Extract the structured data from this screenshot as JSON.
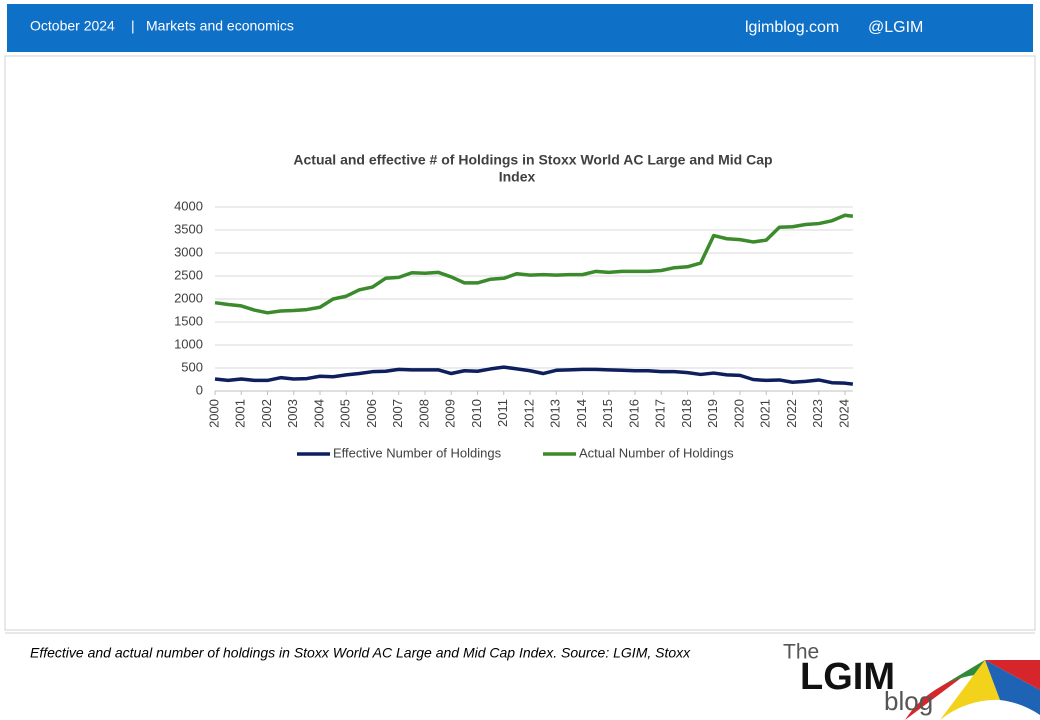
{
  "header": {
    "date": "October 2024",
    "separator": "|",
    "section": "Markets and economics",
    "site": "lgimblog.com",
    "handle": "@LGIM"
  },
  "chart_data": {
    "type": "line",
    "title": "Actual and effective # of Holdings in Stoxx World AC Large and Mid Cap",
    "title_line2": "Index",
    "x": [
      2000,
      2000.5,
      2001,
      2001.5,
      2002,
      2002.5,
      2003,
      2003.5,
      2004,
      2004.5,
      2005,
      2005.5,
      2006,
      2006.5,
      2007,
      2007.5,
      2008,
      2008.5,
      2009,
      2009.5,
      2010,
      2010.5,
      2011,
      2011.5,
      2012,
      2012.5,
      2013,
      2013.5,
      2014,
      2014.5,
      2015,
      2015.5,
      2016,
      2016.5,
      2017,
      2017.5,
      2018,
      2018.5,
      2019,
      2019.5,
      2020,
      2020.5,
      2021,
      2021.5,
      2022,
      2022.5,
      2023,
      2023.5,
      2024,
      2024.3
    ],
    "series": [
      {
        "name": "Effective Number of Holdings",
        "color": "#0e1f5e",
        "values": [
          260,
          230,
          260,
          230,
          230,
          290,
          260,
          270,
          320,
          310,
          350,
          380,
          420,
          430,
          470,
          460,
          460,
          460,
          380,
          440,
          430,
          480,
          520,
          480,
          440,
          380,
          450,
          460,
          470,
          470,
          460,
          450,
          440,
          440,
          420,
          420,
          400,
          360,
          390,
          350,
          340,
          250,
          230,
          240,
          190,
          210,
          240,
          180,
          170,
          150
        ]
      },
      {
        "name": "Actual Number of Holdings",
        "color": "#3b8a2c",
        "values": [
          1920,
          1880,
          1850,
          1760,
          1700,
          1740,
          1750,
          1770,
          1820,
          2000,
          2060,
          2200,
          2260,
          2450,
          2470,
          2570,
          2560,
          2580,
          2480,
          2350,
          2350,
          2430,
          2450,
          2550,
          2520,
          2530,
          2520,
          2530,
          2530,
          2600,
          2580,
          2600,
          2600,
          2600,
          2620,
          2680,
          2700,
          2780,
          3380,
          3310,
          3290,
          3240,
          3280,
          3560,
          3570,
          3620,
          3640,
          3700,
          3820,
          3800
        ]
      }
    ],
    "xlim": [
      2000,
      2024.3
    ],
    "xticks": [
      2000,
      2001,
      2002,
      2003,
      2004,
      2005,
      2006,
      2007,
      2008,
      2009,
      2010,
      2011,
      2012,
      2013,
      2014,
      2015,
      2016,
      2017,
      2018,
      2019,
      2020,
      2021,
      2022,
      2023,
      2024
    ],
    "ylim": [
      0,
      4000
    ],
    "yticks": [
      0,
      500,
      1000,
      1500,
      2000,
      2500,
      3000,
      3500,
      4000
    ],
    "grid": true,
    "legend": "bottom"
  },
  "footer": {
    "caption": "Effective and actual number of holdings in Stoxx World AC Large and Mid Cap Index. Source: LGIM, Stoxx",
    "logo_the": "The",
    "logo_lgim": "LGIM",
    "logo_blog": "blog"
  }
}
